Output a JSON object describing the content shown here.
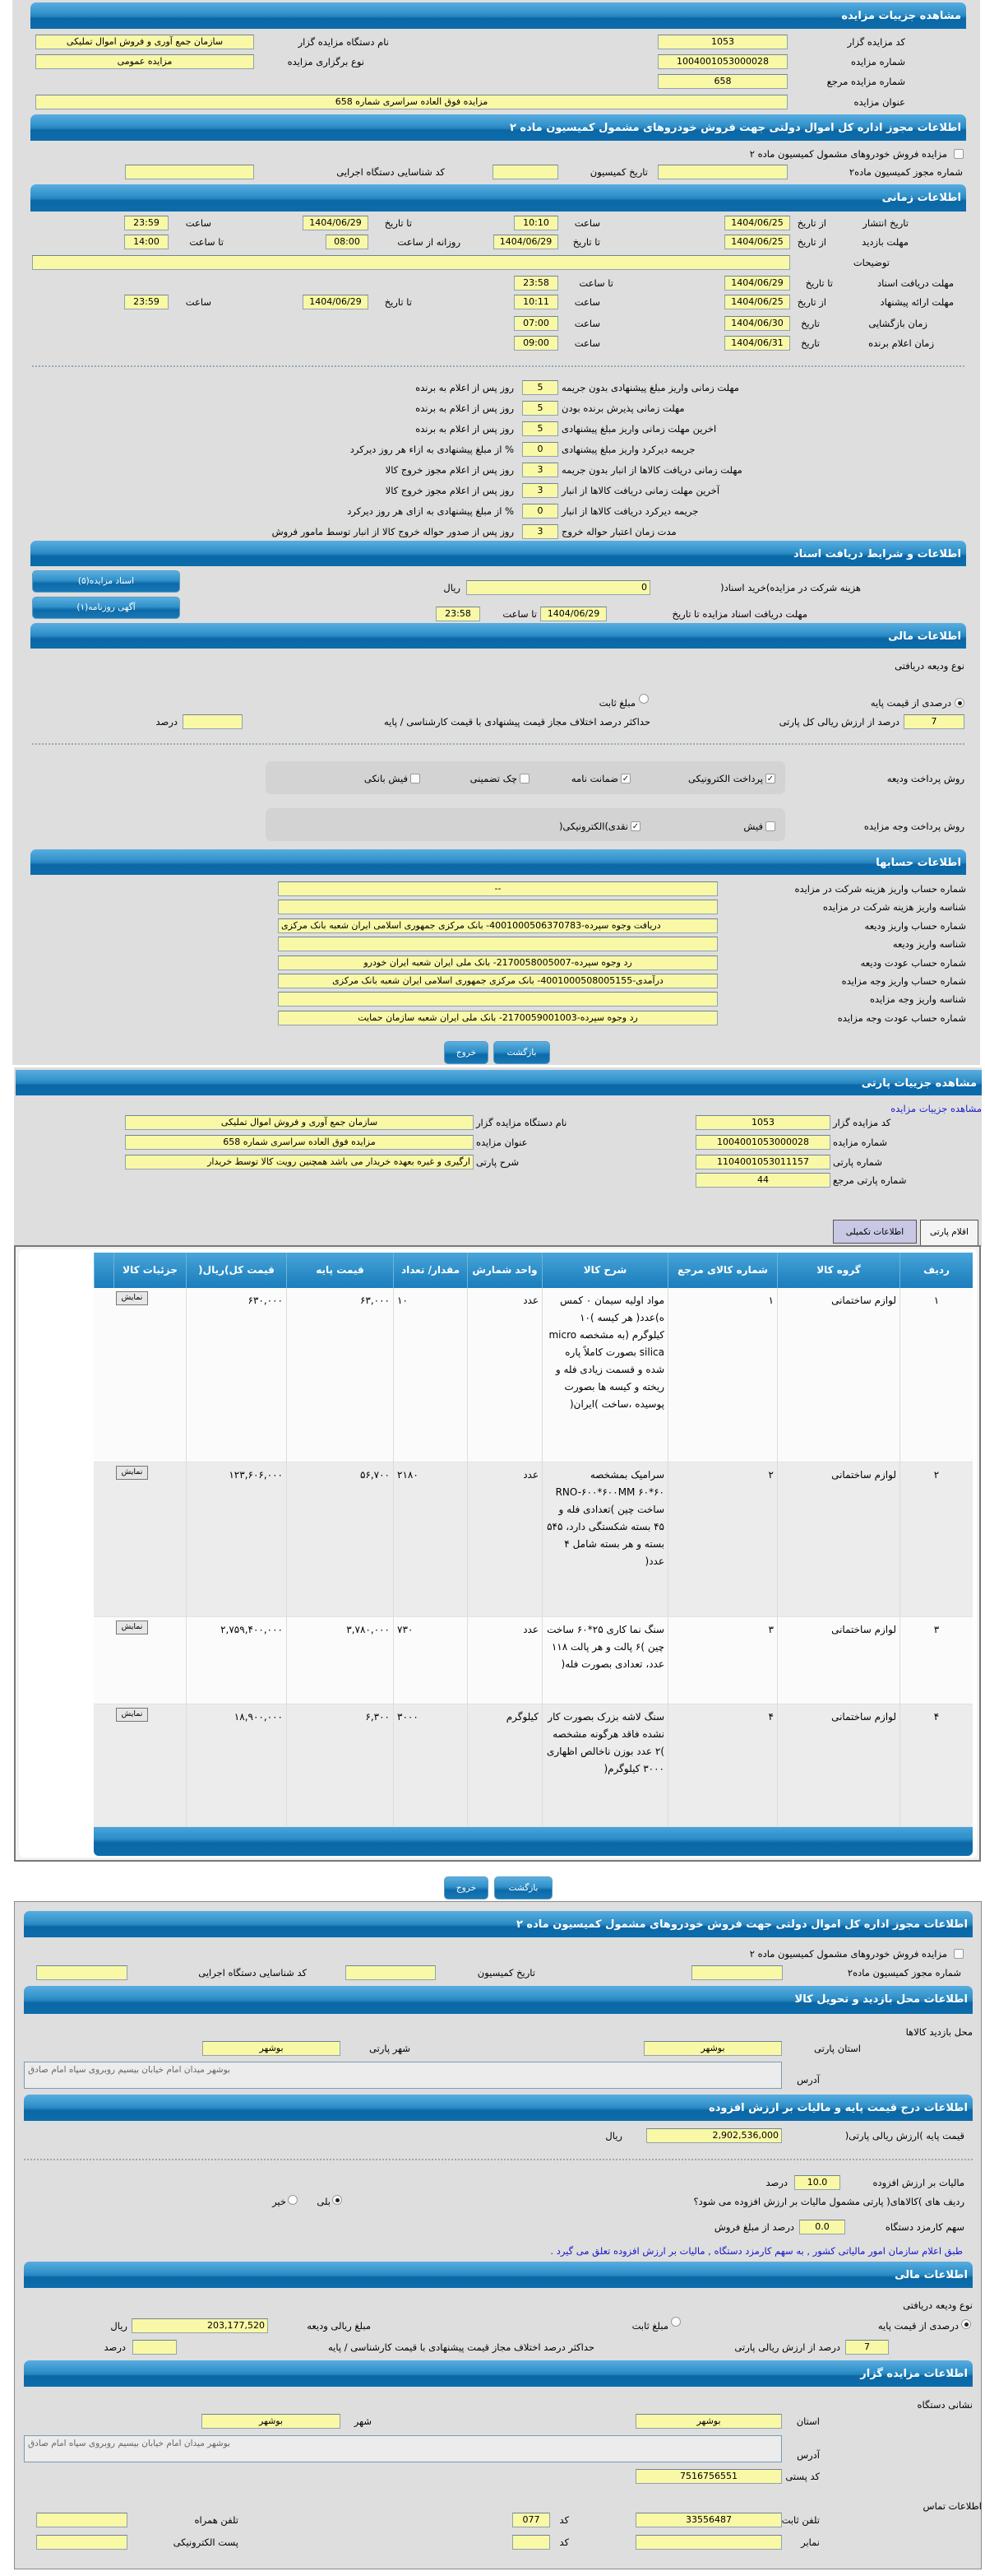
{
  "colors": {
    "header_blue": "#2785c0",
    "input_yellow": "#f8f8a6",
    "panel_gray": "#dedede",
    "note_blue": "#1414c8",
    "tab_inactive": "#c8c7e4"
  },
  "auction": {
    "header": "مشاهده جزییات مزایده",
    "auctioneer_code_label": "کد مزایده گزار",
    "auctioneer_code": "1053",
    "auction_number_label": "شماره مزایده",
    "auction_number": "1004001053000028",
    "ref_number_label": "شماره مزایده مرجع",
    "ref_number": "658",
    "title_label": "عنوان مزایده",
    "title": "مزایده فوق العاده سراسری شماره 658",
    "org_name_label": "نام دستگاه مزایده گزار",
    "org_name": "سازمان جمع آوری و فروش اموال تملیکی",
    "type_label": "نوع برگزاری مزایده",
    "type": "مزایده عمومی"
  },
  "permit": {
    "header": "اطلاعات مجوز اداره کل اموال دولتی جهت فروش خودروهای مشمول کمیسیون ماده ۲",
    "checkbox_label": "مزایده فروش خودروهای مشمول کمیسیون ماده ۲",
    "checked": false,
    "permit_no_label": "شماره مجوز کمیسیون ماده۲",
    "permit_no": "",
    "date_label": "تاریخ کمیسیون",
    "date": "",
    "exec_code_label": "کد شناسایی دستگاه اجرایی",
    "exec_code": ""
  },
  "timing": {
    "header": "اطلاعات زمانی",
    "publish": {
      "label": "تاریخ انتشار",
      "from_label": "از تاریخ",
      "from": "1404/06/25",
      "from_time_label": "ساعت",
      "from_time": "10:10",
      "to_label": "تا تاریخ",
      "to": "1404/06/29",
      "to_time_label": "ساعت",
      "to_time": "23:59"
    },
    "visit": {
      "label": "مهلت بازدید",
      "from_label": "از تاریخ",
      "from": "1404/06/25",
      "to_label": "تا تاریخ",
      "to": "1404/06/29",
      "daily_from_label": "روزانه از ساعت",
      "daily_from": "08:00",
      "daily_to_label": "تا ساعت",
      "daily_to": "14:00"
    },
    "description_label": "توضیحات",
    "description": "",
    "docs_deadline": {
      "label": "مهلت دریافت اسناد",
      "to_label": "تا تاریخ",
      "to": "1404/06/29",
      "time_label": "تا ساعت",
      "time": "23:58"
    },
    "offer": {
      "label": "مهلت ارائه پیشنهاد",
      "from_label": "از تاریخ",
      "from": "1404/06/25",
      "from_time_label": "ساعت",
      "from_time": "10:11",
      "to_label": "تا تاریخ",
      "to": "1404/06/29",
      "to_time_label": "ساعت",
      "to_time": "23:59"
    },
    "opening": {
      "label": "زمان بازگشایی",
      "date_label": "تاریخ",
      "date": "1404/06/30",
      "time_label": "ساعت",
      "time": "07:00"
    },
    "winner": {
      "label": "زمان اعلام برنده",
      "date_label": "تاریخ",
      "date": "1404/06/31",
      "time_label": "ساعت",
      "time": "09:00"
    },
    "rules": [
      {
        "label": "مهلت زمانی واریز مبلغ پیشنهادی بدون جریمه",
        "value": "5",
        "suffix": "روز پس از اعلام به برنده"
      },
      {
        "label": "مهلت زمانی پذیرش برنده بودن",
        "value": "5",
        "suffix": "روز پس از اعلام به برنده"
      },
      {
        "label": "اخرین مهلت زمانی واریز مبلغ پیشنهادی",
        "value": "5",
        "suffix": "روز پس از اعلام به برنده"
      },
      {
        "label": "جریمه دیرکرد واریز مبلغ پیشنهادی",
        "value": "0",
        "suffix": "% از مبلغ پیشنهادی به ازاء هر روز دیرکرد"
      },
      {
        "label": "مهلت زمانی دریافت کالاها از انبار بدون جریمه",
        "value": "3",
        "suffix": "روز پس از اعلام مجوز خروج کالا"
      },
      {
        "label": "آخرین مهلت زمانی دریافت کالاها از انبار",
        "value": "3",
        "suffix": "روز پس از اعلام مجوز خروج کالا"
      },
      {
        "label": "جریمه دیرکرد دریافت کالاها از انبار",
        "value": "0",
        "suffix": "% از مبلغ پیشنهادی به ازای هر روز دیرکرد"
      },
      {
        "label": "مدت زمان اعتبار حواله خروج",
        "value": "3",
        "suffix": "روز پس از صدور حواله خروج کالا از انبار توسط مامور فروش"
      }
    ]
  },
  "docs": {
    "header": "اطلاعات و شرایط دریافت اسناد",
    "fee_label": "هزینه شرکت در مزایده)خرید اسناد(",
    "fee": "0",
    "fee_unit": "ریال",
    "deadline_label": "مهلت دریافت اسناد مزایده تا تاریخ",
    "deadline_date": "1404/06/29",
    "time_label": "تا ساعت",
    "time": "23:58",
    "buttons": [
      "اسناد مزایده(۵)",
      "آگهی روزنامه(۱)"
    ]
  },
  "financial": {
    "header": "اطلاعات مالی",
    "deposit_type_label": "نوع ودیعه دریافتی",
    "opt_percent": "درصدی از قیمت پایه",
    "opt_fixed": "مبلغ ثابت",
    "selected": "percent",
    "percent_value": "7",
    "percent_label": "درصد از ارزش ریالی کل پارتی",
    "max_diff_label": "حداکثر درصد اختلاف مجاز قیمت پیشنهادی با قیمت کارشناسی / پایه",
    "max_diff": "",
    "max_diff_unit": "درصد",
    "deposit_method_label": "روش پرداخت ودیعه",
    "deposit_methods": [
      {
        "label": "پرداخت الکترونیکی",
        "checked": true
      },
      {
        "label": "ضمانت نامه",
        "checked": true
      },
      {
        "label": "چک تضمینی",
        "checked": false
      },
      {
        "label": "فیش بانکی",
        "checked": false
      }
    ],
    "payment_method_label": "روش پرداخت وجه مزایده",
    "payment_methods": [
      {
        "label": "فیش",
        "checked": false
      },
      {
        "label": "نقدی)الکترونیکی(",
        "checked": true
      }
    ]
  },
  "accounts": {
    "header": "اطلاعات حسابها",
    "rows": [
      {
        "label": "شماره حساب واریز هزینه شرکت در مزایده",
        "value": "--"
      },
      {
        "label": "شناسه واریز هزینه شرکت در مزایده",
        "value": ""
      },
      {
        "label": "شماره حساب واریز ودیعه",
        "value": "دریافت وجوه سپرده-4001000506370783- بانک مرکزی جمهوری اسلامی ایران شعبه بانک مرکزی"
      },
      {
        "label": "شناسه واریز ودیعه",
        "value": ""
      },
      {
        "label": "شماره حساب عودت ودیعه",
        "value": "رد وجوه سپرده-2170058005007- بانک ملی ایران شعبه ایران خودرو"
      },
      {
        "label": "شماره حساب واریز وجه مزایده",
        "value": "درآمدی-4001000508005155- بانک مرکزی جمهوری اسلامی ایران شعبه بانک مرکزی"
      },
      {
        "label": "شناسه واریز وجه مزایده",
        "value": ""
      },
      {
        "label": "شماره حساب عودت وجه مزایده",
        "value": "رد وجوه سپرده-2170059001003- بانک ملی ایران شعبه سازمان حمایت"
      }
    ]
  },
  "actions": {
    "back": "بازگشت",
    "exit": "خروج"
  },
  "parti": {
    "header": "مشاهده جزییات پارتی",
    "auction_link": "مشاهده جزییات مزایده",
    "auctioneer_code_label": "کد مزایده گزار",
    "auctioneer_code": "1053",
    "auction_number_label": "شماره مزایده",
    "auction_number": "1004001053000028",
    "parti_number_label": "شماره پارتی",
    "parti_number": "1104001053011157",
    "parti_ref_label": "شماره پارتی مرجع",
    "parti_ref": "44",
    "org_name_label": "نام دستگاه مزایده گزار",
    "org_name": "سازمان جمع آوری و فروش اموال تملیکی",
    "title_label": "عنوان مزایده",
    "title": "مزایده فوق العاده سراسری شماره 658",
    "description_label": "شرح پارتی",
    "description": "ارگیری و غیره بعهده خریدار می باشد همچنین رویت کالا توسط خریدار",
    "tabs": [
      "اقلام پارتی",
      "اطلاعات تکمیلی"
    ],
    "active_tab": "اقلام پارتی",
    "table": {
      "columns": [
        "ردیف",
        "گروه کالا",
        "شماره کالای مرجع",
        "شرح کالا",
        "واحد شمارش",
        "مقدار/ تعداد",
        "قیمت پایه",
        "قیمت کل)ریال(",
        "جزئیات کالا"
      ],
      "detail_button": "نمایش",
      "rows": [
        [
          "۱",
          "لوازم ساختمانی",
          "۱",
          "مواد اولیه سیمان ۰ کمس ه)عدد( هر کیسه )۱۰ کیلوگرم (به مشخصه micro silica بصورت کاملاً پاره شده و قسمت زیادی فله و ریخته و کیسه ها بصورت پوسیده ،ساخت )ایران(",
          "عدد",
          "۱۰",
          "۶۳,۰۰۰",
          "۶۳۰,۰۰۰"
        ],
        [
          "۲",
          "لوازم ساختمانی",
          "۲",
          "سرامیک بمشخصه RNO-۶۰۰*۶۰۰MM ۶۰*۶۰ ساخت چین )تعدادی فله و ۴۵ بسته شکستگی دارد، ۵۴۵ بسته و هر بسته شامل ۴ عدد(",
          "عدد",
          "۲۱۸۰",
          "۵۶,۷۰۰",
          "۱۲۳,۶۰۶,۰۰۰"
        ],
        [
          "۳",
          "لوازم ساختمانی",
          "۳",
          "سنگ نما کاری ۲۵*۶۰ ساخت چین )۶ پالت و هر پالت ۱۱۸ عدد، تعدادی بصورت فله(",
          "عدد",
          "۷۳۰",
          "۳,۷۸۰,۰۰۰",
          "۲,۷۵۹,۴۰۰,۰۰۰"
        ],
        [
          "۴",
          "لوازم ساختمانی",
          "۴",
          "سنگ لاشه بزرک بصورت کار نشده فاقد هرگونه مشخصه )۲ عدد بوزن ناخالص اظهاری ۳۰۰۰ کیلوگرم(",
          "کیلوگرم",
          "۳۰۰۰",
          "۶,۳۰۰",
          "۱۸,۹۰۰,۰۰۰"
        ]
      ]
    }
  },
  "permit2": {
    "header": "اطلاعات مجوز اداره کل اموال دولتی جهت فروش خودروهای مشمول کمیسیون ماده ۲",
    "checkbox_label": "مزایده فروش خودروهای مشمول کمیسیون ماده ۲",
    "checked": false,
    "permit_no_label": "شماره مجوز کمیسیون ماده۲",
    "permit_no": "",
    "date_label": "تاریخ کمیسیون",
    "date": "",
    "exec_code_label": "کد شناسایی دستگاه اجرایی",
    "exec_code": ""
  },
  "location": {
    "header": "اطلاعات محل بازدید و تحویل کالا",
    "visit_title": "محل بازدید کالاها",
    "province_label": "استان پارتی",
    "province": "بوشهر",
    "city_label": "شهر پارتی",
    "city": "بوشهر",
    "address_label": "آدرس",
    "address": "بوشهر میدان امام خیابان بیسیم روبروی سپاه امام صادق"
  },
  "pricing": {
    "header": "اطلاعات درج قیمت پایه و مالیات بر ارزش افزوده",
    "base_price_label": "قیمت پایه )ارزش ریالی پارتی(",
    "base_price": "2,902,536,000",
    "base_price_unit": "ریال",
    "vat_label": "مالیات بر ارزش افزوده",
    "vat": "10.0",
    "vat_unit": "درصد",
    "vat_question": "ردیف های )کالاهای( پارتی مشمول مالیات بر ارزش افزوده می شود؟",
    "yes": "بلی",
    "no": "خیر",
    "vat_applies": "yes",
    "commission_label": "سهم کارمزد دستگاه",
    "commission": "0.0",
    "commission_unit": "درصد از مبلغ فروش",
    "note": "طبق اعلام سازمان امور مالیاتی کشور , به سهم کارمزد دستگاه , مالیات بر ارزش افزوده تعلق می گیرد ."
  },
  "financial2": {
    "header": "اطلاعات مالی",
    "deposit_type_label": "نوع ودیعه دریافتی",
    "opt_percent": "درصدی از قیمت پایه",
    "opt_fixed": "مبلغ ثابت",
    "selected": "percent",
    "amount_label": "مبلغ ریالی ودیعه",
    "amount": "203,177,520",
    "amount_unit": "ریال",
    "percent_value": "7",
    "percent_label": "درصد از ارزش ریالی پارتی",
    "max_diff_label": "حداکثر درصد اختلاف مجاز قیمت پیشنهادی با قیمت کارشناسی / پایه",
    "max_diff": "",
    "max_diff_unit": "درصد"
  },
  "auctioneer": {
    "header": "اطلاعات مزایده گزار",
    "address_title": "نشانی دستگاه",
    "province_label": "استان",
    "province": "بوشهر",
    "city_label": "شهر",
    "city": "بوشهر",
    "address_label": "آدرس",
    "address": "بوشهر میدان امام خیابان بیسیم روبروی سپاه امام صادق",
    "postal_label": "کد پستی",
    "postal": "7516756551",
    "contact_title": "اطلاعات تماس",
    "phone_label": "تلفن ثابت",
    "phone": "33556487",
    "phone_code_label": "کد",
    "phone_code": "077",
    "mobile_label": "تلفن همراه",
    "mobile": "",
    "fax_label": "نمابر",
    "fax": "",
    "fax_code_label": "کد",
    "fax_code": "",
    "email_label": "پست الکترونیکی",
    "email": ""
  }
}
